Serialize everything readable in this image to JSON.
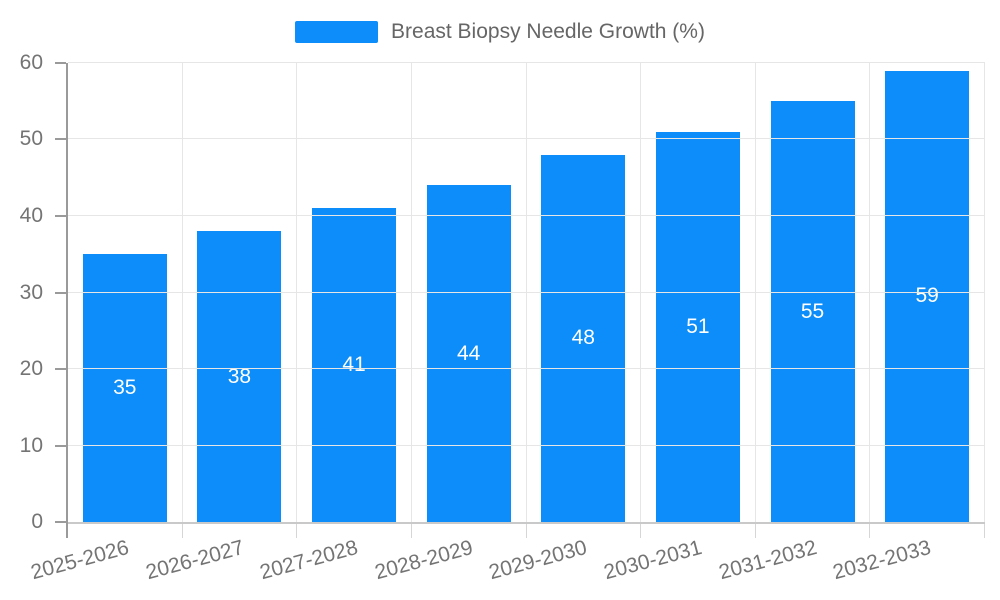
{
  "legend": {
    "label": "Breast Biopsy Needle Growth (%)",
    "swatch_color": "#0d8df9"
  },
  "chart_data": {
    "type": "bar",
    "title": "Breast Biopsy Needle Growth (%)",
    "categories": [
      "2025-2026",
      "2026-2027",
      "2027-2028",
      "2028-2029",
      "2029-2030",
      "2030-2031",
      "2031-2032",
      "2032-2033"
    ],
    "values": [
      35,
      38,
      41,
      44,
      48,
      51,
      55,
      59
    ],
    "series": [
      {
        "name": "Breast Biopsy Needle Growth (%)",
        "values": [
          35,
          38,
          41,
          44,
          48,
          51,
          55,
          59
        ]
      }
    ],
    "xlabel": "",
    "ylabel": "",
    "ylim": [
      0,
      60
    ],
    "yticks": [
      0,
      10,
      20,
      30,
      40,
      50,
      60
    ],
    "grid": true,
    "legend_position": "top",
    "bar_color": "#0d8df9",
    "value_label_color": "#ffffff",
    "grid_color": "#e6e6e6",
    "axis_line_color": "#9a9a9a",
    "tick_label_color": "#747474"
  }
}
